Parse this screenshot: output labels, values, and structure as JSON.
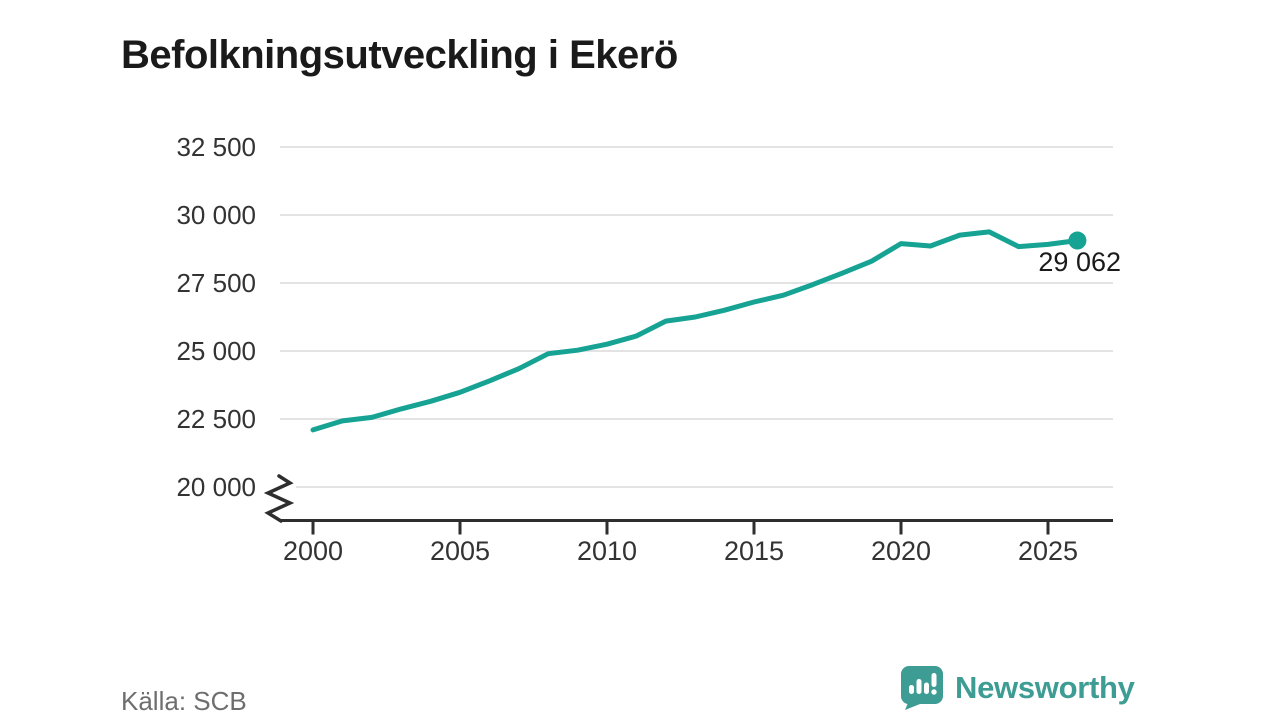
{
  "header": {
    "title": "Befolkningsutveckling i Ekerö"
  },
  "footer": {
    "source": "Källa: SCB",
    "brand": {
      "name": "Newsworthy"
    }
  },
  "colors": {
    "line": "#16a394",
    "marker": "#16a394",
    "grid": "#e3e3e3",
    "axis": "#2e2e2e",
    "title_text": "#1a1a1a",
    "tick_label": "#333333",
    "annotation_text": "#1a1a1a",
    "source_text": "#6e6e6e",
    "brand_teal": "#3d9c93"
  },
  "chart_data": {
    "type": "line",
    "title": "Befolkningsutveckling i Ekerö",
    "xlabel": "",
    "ylabel": "",
    "x": [
      2000,
      2001,
      2002,
      2003,
      2004,
      2005,
      2006,
      2007,
      2008,
      2009,
      2010,
      2011,
      2012,
      2013,
      2014,
      2015,
      2016,
      2017,
      2018,
      2019,
      2020,
      2021,
      2022,
      2023,
      2024,
      2025,
      2026
    ],
    "values": [
      22100,
      22430,
      22560,
      22870,
      23150,
      23480,
      23900,
      24350,
      24900,
      25030,
      25250,
      25550,
      26100,
      26250,
      26500,
      26800,
      27050,
      27440,
      27860,
      28300,
      28950,
      28860,
      29260,
      29380,
      28840,
      28920,
      29062
    ],
    "x_ticks": {
      "values": [
        2000,
        2005,
        2010,
        2015,
        2020,
        2025
      ],
      "labels": [
        "2000",
        "2005",
        "2010",
        "2015",
        "2020",
        "2025"
      ]
    },
    "y_ticks": {
      "values": [
        20000,
        22500,
        25000,
        27500,
        30000,
        32500
      ],
      "labels": [
        "20 000",
        "22 500",
        "25 000",
        "27 500",
        "30 000",
        "32 500"
      ]
    },
    "ylim": [
      20000,
      33500
    ],
    "xlim": [
      1999,
      2027.5
    ],
    "grid": "horizontal",
    "legend": "none",
    "y_axis_break": true,
    "end_point": {
      "x": 2026,
      "value": 29062,
      "label": "29 062",
      "marker": "dot"
    }
  }
}
